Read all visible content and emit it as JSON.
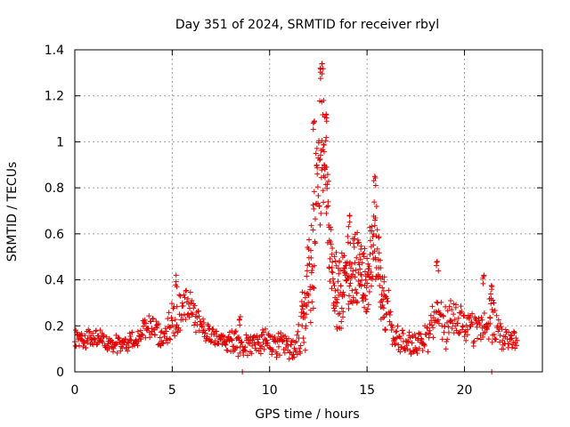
{
  "chart_data": {
    "type": "scatter",
    "title": "Day 351 of 2024, SRMTID for receiver rbyl",
    "xlabel": "GPS time / hours",
    "ylabel": "SRMTID / TECUs",
    "xlim": [
      0,
      24
    ],
    "ylim": [
      0,
      1.4
    ],
    "x_ticks": [
      0,
      5,
      10,
      15,
      20
    ],
    "x_tick_labels": [
      "0",
      "5",
      "10",
      "15",
      "20"
    ],
    "y_ticks": [
      0,
      0.2,
      0.4,
      0.6,
      0.8,
      1,
      1.2,
      1.4
    ],
    "y_tick_labels": [
      "0",
      "0.2",
      "0.4",
      "0.6",
      "0.8",
      "1",
      "1.2",
      "1.4"
    ],
    "grid": true,
    "marker": "plus",
    "marker_color": "#e00000",
    "x_range_of_points": [
      0,
      22.7
    ],
    "envelope": {
      "x": [
        0,
        1,
        2,
        3,
        3.8,
        4.5,
        5.2,
        5.8,
        6.5,
        7.5,
        8.5,
        9.5,
        10.5,
        11.2,
        11.8,
        12.2,
        12.5,
        12.7,
        12.9,
        13.2,
        13.5,
        14,
        14.5,
        15,
        15.4,
        15.8,
        16.3,
        17,
        17.5,
        18,
        18.5,
        19,
        19.5,
        20,
        20.5,
        21,
        21.4,
        21.8,
        22.3,
        22.7
      ],
      "center": [
        0.14,
        0.15,
        0.12,
        0.14,
        0.2,
        0.15,
        0.25,
        0.3,
        0.18,
        0.14,
        0.12,
        0.13,
        0.12,
        0.1,
        0.25,
        0.55,
        0.8,
        1.0,
        0.85,
        0.4,
        0.35,
        0.4,
        0.45,
        0.4,
        0.55,
        0.35,
        0.18,
        0.12,
        0.12,
        0.15,
        0.22,
        0.2,
        0.25,
        0.2,
        0.18,
        0.2,
        0.28,
        0.15,
        0.14,
        0.14
      ],
      "spread": [
        0.04,
        0.05,
        0.04,
        0.05,
        0.05,
        0.05,
        0.1,
        0.08,
        0.05,
        0.04,
        0.05,
        0.06,
        0.05,
        0.05,
        0.15,
        0.3,
        0.35,
        0.3,
        0.25,
        0.2,
        0.2,
        0.18,
        0.2,
        0.15,
        0.2,
        0.15,
        0.07,
        0.05,
        0.05,
        0.06,
        0.12,
        0.1,
        0.1,
        0.08,
        0.07,
        0.08,
        0.13,
        0.06,
        0.05,
        0.04
      ]
    },
    "peaks": [
      {
        "x": 12.7,
        "y": 1.34
      },
      {
        "x": 12.6,
        "y": 1.32
      },
      {
        "x": 12.9,
        "y": 1.12
      },
      {
        "x": 12.3,
        "y": 1.09
      },
      {
        "x": 15.4,
        "y": 0.85
      },
      {
        "x": 12.8,
        "y": 0.9
      },
      {
        "x": 14.1,
        "y": 0.68
      },
      {
        "x": 18.6,
        "y": 0.48
      },
      {
        "x": 5.2,
        "y": 0.42
      },
      {
        "x": 21.0,
        "y": 0.42
      },
      {
        "x": 8.5,
        "y": 0.24
      }
    ],
    "outliers_at_zero": [
      8.6,
      21.4
    ]
  }
}
